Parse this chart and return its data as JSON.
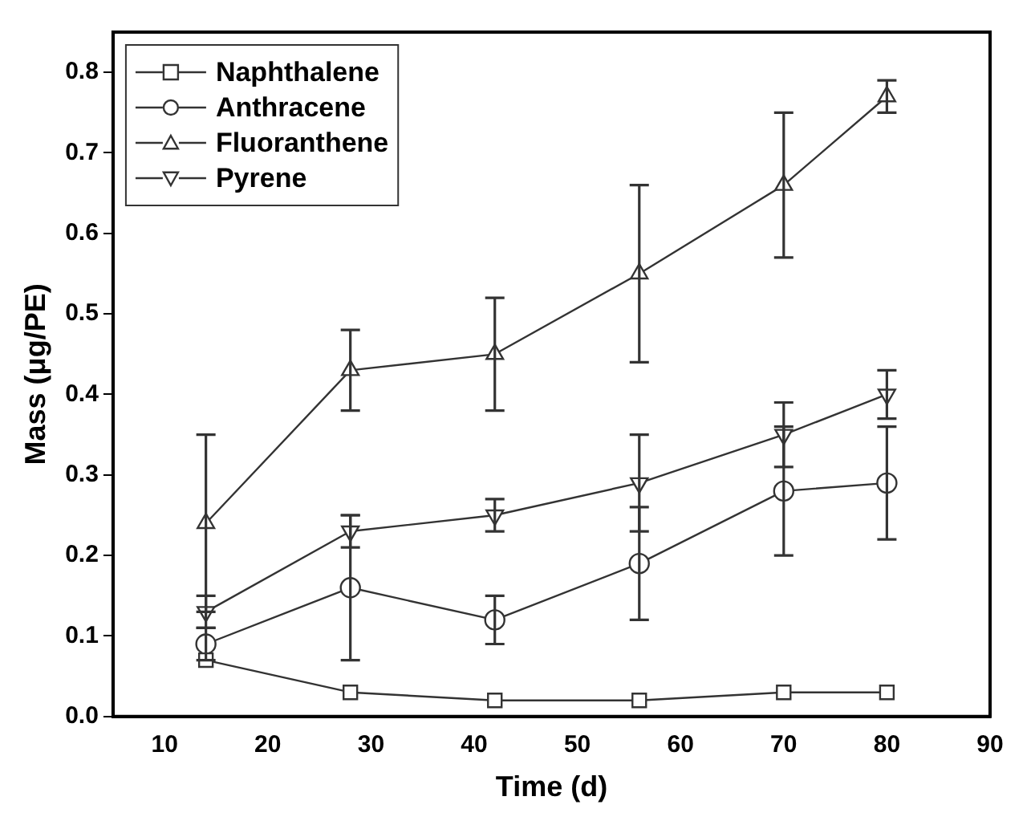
{
  "chart_data": {
    "type": "line",
    "xlabel": "Time (d)",
    "ylabel": "Mass (μg/PE)",
    "x": [
      14,
      28,
      42,
      56,
      70,
      80
    ],
    "xlim": [
      5,
      90
    ],
    "xticks": [
      10,
      20,
      30,
      40,
      50,
      60,
      70,
      80,
      90
    ],
    "ylim": [
      0,
      0.85
    ],
    "yticks": [
      {
        "value": 0,
        "label": "0.0"
      },
      0.1,
      0.2,
      0.3,
      0.4,
      0.5,
      0.6,
      0.7,
      0.8
    ],
    "legend": "top left",
    "grid": false,
    "line_style": "solid",
    "series": [
      {
        "name": "Naphthalene",
        "color": "#333333",
        "marker": "square",
        "values": [
          0.07,
          0.03,
          0.02,
          0.02,
          0.03,
          0.03
        ]
      },
      {
        "name": "Anthracene",
        "color": "#333333",
        "marker": "circle",
        "values": [
          0.09,
          0.16,
          0.12,
          0.19,
          0.28,
          0.29
        ],
        "errors": [
          0.02,
          0.09,
          0.03,
          0.07,
          0.08,
          0.07
        ]
      },
      {
        "name": "Fluoranthene",
        "color": "#333333",
        "marker": "triangle",
        "values": [
          0.24,
          0.43,
          0.45,
          0.55,
          0.66,
          0.77
        ],
        "errors": [
          0.11,
          0.05,
          0.07,
          0.11,
          0.09,
          0.02
        ]
      },
      {
        "name": "Pyrene",
        "color": "#333333",
        "marker": "triangle-down",
        "values": [
          0.13,
          0.23,
          0.25,
          0.29,
          0.35,
          0.4
        ],
        "errors": [
          0.02,
          0.02,
          0.02,
          0.06,
          0.04,
          0.03
        ]
      }
    ]
  }
}
